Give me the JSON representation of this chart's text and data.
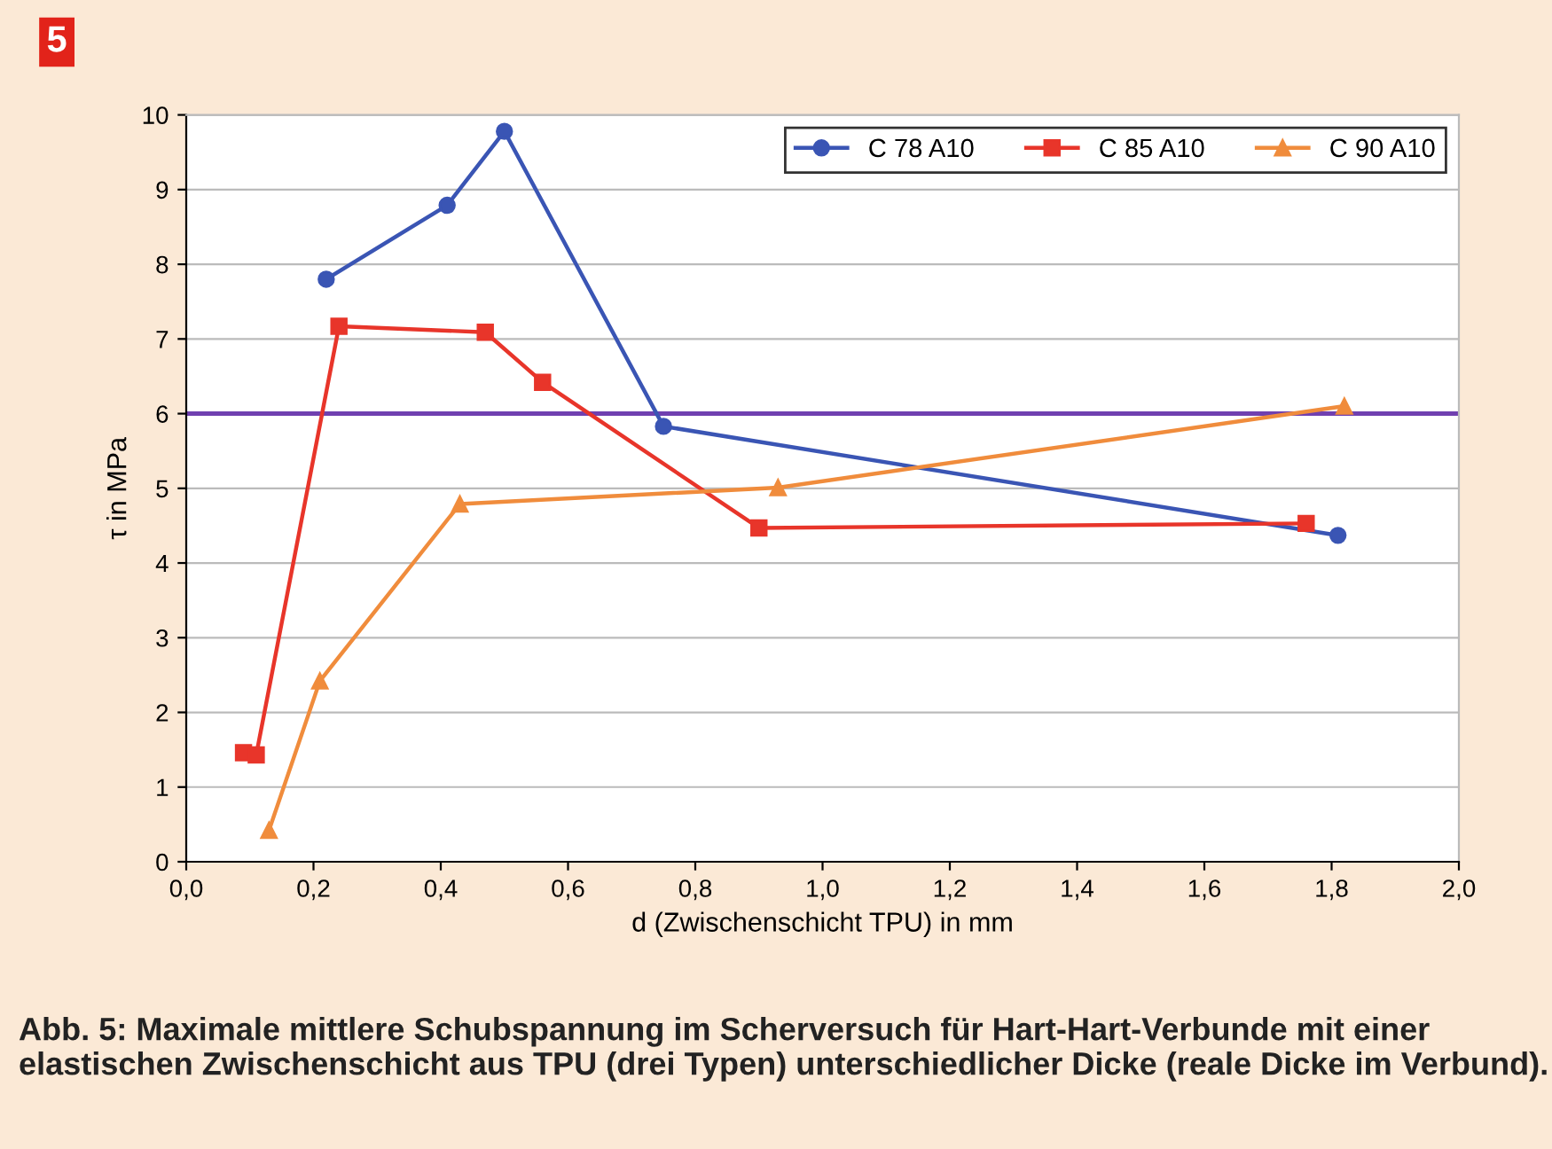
{
  "chart_data": {
    "type": "line",
    "xlabel": "d (Zwischenschicht TPU) in mm",
    "ylabel": "τ in MPa",
    "xlim": [
      0,
      2
    ],
    "xticks": [
      {
        "value": 0,
        "label": "0,0"
      },
      {
        "value": 0.2,
        "label": "0,2"
      },
      {
        "value": 0.4,
        "label": "0,4"
      },
      {
        "value": 0.6,
        "label": "0,6"
      },
      {
        "value": 0.8,
        "label": "0,8"
      },
      {
        "value": 1.0,
        "label": "1,0"
      },
      {
        "value": 1.2,
        "label": "1,2"
      },
      {
        "value": 1.4,
        "label": "1,4"
      },
      {
        "value": 1.6,
        "label": "1,6"
      },
      {
        "value": 1.8,
        "label": "1,8"
      },
      {
        "value": 2.0,
        "label": "2,0"
      }
    ],
    "ylim": [
      0,
      10
    ],
    "yticks": [
      0,
      1,
      2,
      3,
      4,
      5,
      6,
      7,
      8,
      9,
      10
    ],
    "grid": "y",
    "legend": "top right",
    "series": [
      {
        "name": "C 78 A10",
        "color": "#3a55b4",
        "marker": "circle",
        "x": [
          0.22,
          0.41,
          0.5,
          0.75,
          1.81
        ],
        "values": [
          7.8,
          8.79,
          9.78,
          5.83,
          4.37
        ]
      },
      {
        "name": "C 85 A10",
        "color": "#e8352a",
        "marker": "square",
        "x": [
          0.09,
          0.11,
          0.24,
          0.47,
          0.56,
          0.9,
          1.76
        ],
        "values": [
          1.46,
          1.43,
          7.17,
          7.09,
          6.42,
          4.47,
          4.53
        ]
      },
      {
        "name": "C 90 A10",
        "color": "#f08c3c",
        "marker": "triangle",
        "x": [
          0.13,
          0.21,
          0.43,
          0.93,
          1.82
        ],
        "values": [
          0.42,
          2.42,
          4.79,
          5.01,
          6.1
        ]
      }
    ],
    "ref_lines": [
      {
        "axis": "y",
        "value": 6,
        "color": "#7040b0"
      }
    ],
    "annotations": [
      "5",
      "Abb. 5: Maximale mittlere Schubspannung im Scherversuch für Hart-Hart-Verbunde mit einer elastischen Zwischenschicht aus TPU (drei Typen) unterschiedlicher Dicke (reale Dicke im Verbund)."
    ]
  }
}
